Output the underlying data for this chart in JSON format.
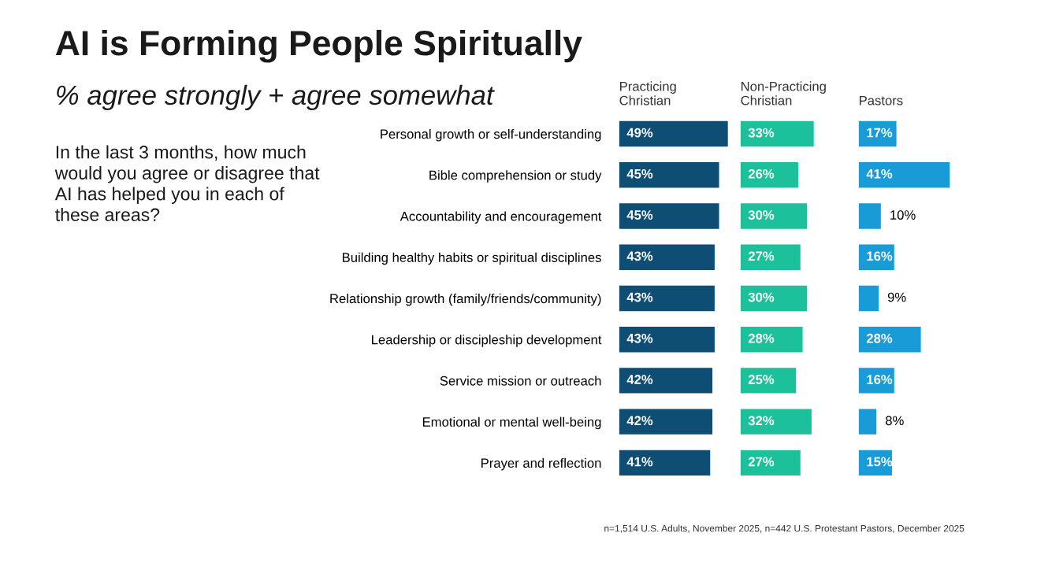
{
  "chart_data": [
    {
      "type": "bar",
      "orientation": "horizontal",
      "title": "AI is Forming People Spiritually",
      "subtitle": "% agree strongly + agree somewhat",
      "legend_title": "Practicing\nChristian",
      "categories": [
        "Personal growth or self-understanding",
        "Bible comprehension or study",
        "Accountability and encouragement",
        "Building healthy habits or spiritual disciplines",
        "Relationship growth (family/friends/community)",
        "Leadership or discipleship development",
        "Service mission or outreach",
        "Emotional or mental well-being",
        "Prayer and reflection"
      ],
      "values": [
        49,
        45,
        45,
        43,
        43,
        43,
        42,
        42,
        41
      ],
      "value_labels": [
        "49%",
        "45%",
        "45%",
        "43%",
        "43%",
        "43%",
        "42%",
        "42%",
        "41%"
      ],
      "color": "#0e4d74",
      "tick_labels": "y",
      "annotations": [
        "In the last 3 months, how much\nwould you agree or disagree that\nAI has helped you in each of\nthese areas?",
        "n=1,514 U.S. Adults, November 2025, n=442 U.S. Protestant Pastors, December 2025"
      ]
    },
    {
      "type": "bar",
      "orientation": "horizontal",
      "legend_title": "Non-Practicing\nChristian",
      "categories": [
        null,
        null,
        null,
        null,
        null,
        null,
        null,
        null,
        null
      ],
      "values": [
        33,
        26,
        30,
        27,
        30,
        28,
        25,
        32,
        27
      ],
      "value_labels": [
        "33%",
        "26%",
        "30%",
        "27%",
        "30%",
        "28%",
        "25%",
        "32%",
        "27%"
      ],
      "color": "#1cc19c",
      "tick_labels": false
    },
    {
      "type": "bar",
      "orientation": "horizontal",
      "legend_title": "Pastors",
      "categories": [
        null,
        null,
        null,
        null,
        null,
        null,
        null,
        null,
        null
      ],
      "values": [
        17,
        41,
        10,
        16,
        9,
        28,
        16,
        8,
        15
      ],
      "value_labels": [
        "17%",
        "41%",
        "10%",
        "16%",
        "9%",
        "28%",
        "16%",
        "8%",
        "15%"
      ],
      "color": "#189bd6",
      "tick_labels": false
    }
  ]
}
